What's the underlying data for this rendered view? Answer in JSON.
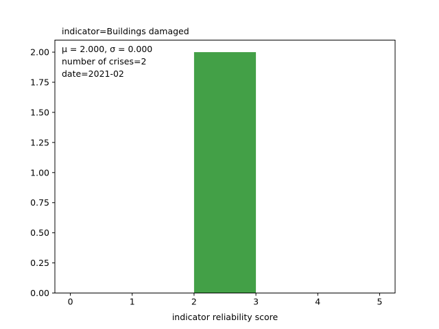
{
  "chart_data": {
    "type": "bar",
    "title": "indicator=Buildings damaged",
    "xlabel": "indicator reliability score",
    "ylabel": "",
    "xlim": [
      -0.25,
      5.25
    ],
    "ylim": [
      0,
      2.1
    ],
    "x_ticks": [
      "0",
      "1",
      "2",
      "3",
      "4",
      "5"
    ],
    "y_ticks": [
      "0.00",
      "0.25",
      "0.50",
      "0.75",
      "1.00",
      "1.25",
      "1.50",
      "1.75",
      "2.00"
    ],
    "bins": [
      {
        "start": 2,
        "end": 3,
        "count": 2
      }
    ],
    "bar_color": "#43a047",
    "grid": false,
    "annotation": {
      "stats": "μ = 2.000,  σ = 0.000",
      "crises": "number of crises=2",
      "date": "date=2021-02"
    }
  }
}
